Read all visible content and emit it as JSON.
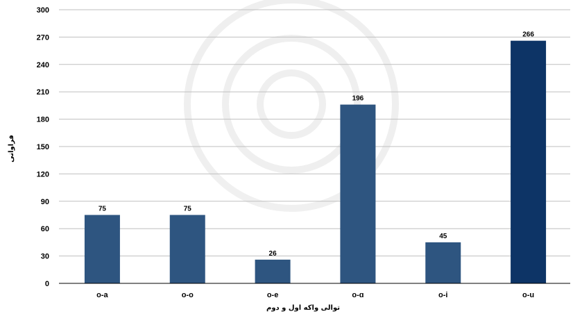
{
  "chart_data": {
    "type": "bar",
    "categories": [
      "o-a",
      "o-o",
      "o-e",
      "o-ɑ",
      "o-i",
      "o-u"
    ],
    "values": [
      75,
      75,
      26,
      196,
      45,
      266
    ],
    "data_labels": [
      "75",
      "75",
      "26",
      "196",
      "45",
      "266"
    ],
    "xlabel": "توالی واکه اول و دوم",
    "ylabel": "فراوانی",
    "ylim": [
      0,
      300
    ],
    "yticks": [
      0,
      30,
      60,
      90,
      120,
      150,
      180,
      210,
      240,
      270,
      300
    ],
    "grid": true,
    "legend": "none",
    "bar_colors": [
      "#2e5580",
      "#2e5580",
      "#2e5580",
      "#2e5580",
      "#2e5580",
      "#0d3466"
    ],
    "accent_color": "#0d3466",
    "grid_color": "#bfbfbf"
  }
}
